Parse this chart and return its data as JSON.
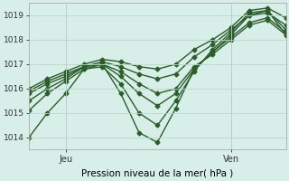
{
  "xlabel": "Pression niveau de la mer( hPa )",
  "bg_color": "#d8eee8",
  "grid_color": "#b8d8cc",
  "line_color": "#2a5e2a",
  "ylim": [
    1013.5,
    1019.5
  ],
  "xlim": [
    0,
    56
  ],
  "xtick_positions": [
    8,
    44
  ],
  "xtick_labels": [
    "Jeu",
    "Ven"
  ],
  "ytick_positions": [
    1014,
    1015,
    1016,
    1017,
    1018,
    1019
  ],
  "series": [
    {
      "x": [
        0,
        4,
        8,
        12,
        16,
        20,
        24,
        28,
        32,
        36,
        40,
        44,
        48,
        52,
        56
      ],
      "y": [
        1014.0,
        1015.0,
        1015.8,
        1016.8,
        1017.0,
        1015.8,
        1014.2,
        1013.8,
        1015.2,
        1016.8,
        1017.5,
        1018.2,
        1019.0,
        1019.2,
        1018.2
      ]
    },
    {
      "x": [
        0,
        4,
        8,
        12,
        16,
        20,
        24,
        28,
        32,
        36,
        40,
        44,
        48,
        52,
        56
      ],
      "y": [
        1015.1,
        1015.8,
        1016.3,
        1016.8,
        1016.9,
        1016.2,
        1015.0,
        1014.5,
        1015.5,
        1016.7,
        1017.6,
        1018.3,
        1019.1,
        1019.2,
        1018.4
      ]
    },
    {
      "x": [
        0,
        4,
        8,
        12,
        16,
        20,
        24,
        28,
        32,
        36,
        40,
        44,
        48,
        52,
        56
      ],
      "y": [
        1015.5,
        1016.0,
        1016.4,
        1016.9,
        1017.0,
        1016.5,
        1015.8,
        1015.3,
        1015.8,
        1016.8,
        1017.5,
        1018.1,
        1018.7,
        1018.9,
        1018.3
      ]
    },
    {
      "x": [
        0,
        4,
        8,
        12,
        16,
        20,
        24,
        28,
        32,
        36,
        40,
        44,
        48,
        52,
        56
      ],
      "y": [
        1015.8,
        1016.2,
        1016.5,
        1016.9,
        1017.0,
        1016.7,
        1016.2,
        1015.8,
        1016.0,
        1016.9,
        1017.4,
        1018.0,
        1018.6,
        1018.8,
        1018.2
      ]
    },
    {
      "x": [
        0,
        4,
        8,
        12,
        16,
        20,
        24,
        28,
        32,
        36,
        40,
        44,
        48,
        52,
        56
      ],
      "y": [
        1015.9,
        1016.3,
        1016.6,
        1016.9,
        1017.1,
        1016.9,
        1016.6,
        1016.4,
        1016.6,
        1017.3,
        1017.8,
        1018.4,
        1019.0,
        1019.1,
        1018.6
      ]
    },
    {
      "x": [
        0,
        4,
        8,
        12,
        16,
        20,
        24,
        28,
        32,
        36,
        40,
        44,
        48,
        52,
        56
      ],
      "y": [
        1016.0,
        1016.4,
        1016.7,
        1017.0,
        1017.2,
        1017.1,
        1016.9,
        1016.8,
        1017.0,
        1017.6,
        1018.0,
        1018.5,
        1019.2,
        1019.3,
        1018.9
      ]
    }
  ],
  "marker": "D",
  "markersize": 2.5,
  "linewidth": 1.0
}
